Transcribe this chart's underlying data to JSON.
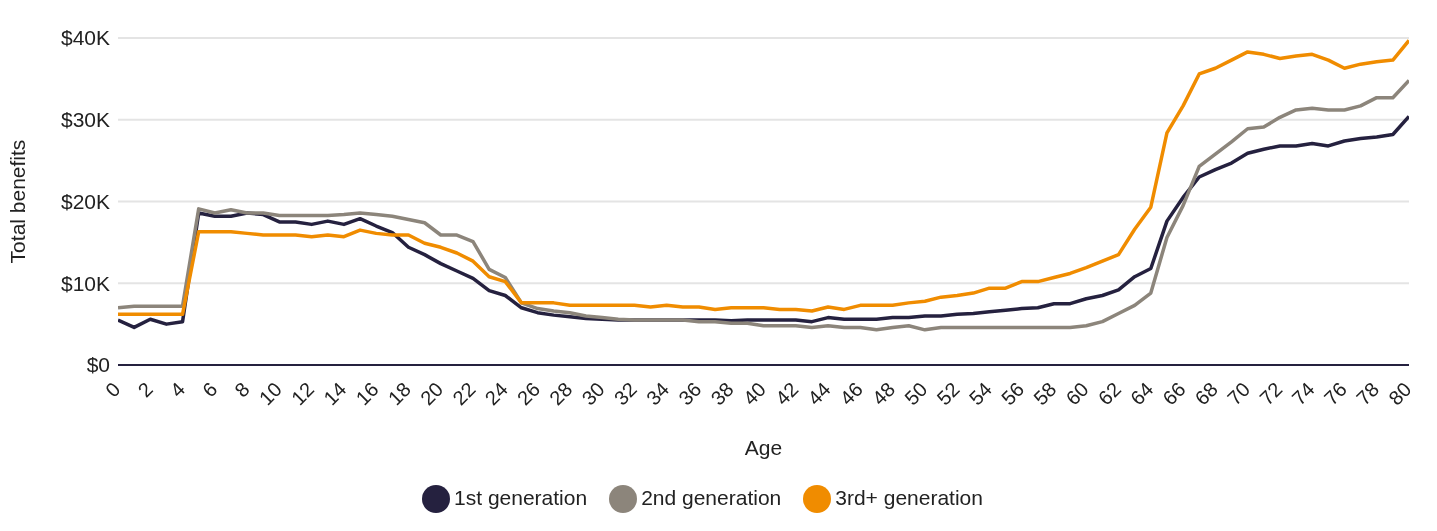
{
  "chart_data": {
    "type": "line",
    "xlabel": "Age",
    "ylabel": "Total benefits",
    "x": [
      0,
      1,
      2,
      3,
      4,
      5,
      6,
      7,
      8,
      9,
      10,
      11,
      12,
      13,
      14,
      15,
      16,
      17,
      18,
      19,
      20,
      21,
      22,
      23,
      24,
      25,
      26,
      27,
      28,
      29,
      30,
      31,
      32,
      33,
      34,
      35,
      36,
      37,
      38,
      39,
      40,
      41,
      42,
      43,
      44,
      45,
      46,
      47,
      48,
      49,
      50,
      51,
      52,
      53,
      54,
      55,
      56,
      57,
      58,
      59,
      60,
      61,
      62,
      63,
      64,
      65,
      66,
      67,
      68,
      69,
      70,
      71,
      72,
      73,
      74,
      75,
      76,
      77,
      78,
      79,
      80
    ],
    "xlim": [
      0,
      80
    ],
    "xticks": [
      0,
      2,
      4,
      6,
      8,
      10,
      12,
      14,
      16,
      18,
      20,
      22,
      24,
      26,
      28,
      30,
      32,
      34,
      36,
      38,
      40,
      42,
      44,
      46,
      48,
      50,
      52,
      54,
      56,
      58,
      60,
      62,
      64,
      66,
      68,
      70,
      72,
      74,
      76,
      78,
      80
    ],
    "ylim": [
      0,
      40000
    ],
    "yticks": [
      {
        "value": 0,
        "label": "$0"
      },
      {
        "value": 10000,
        "label": "$10K"
      },
      {
        "value": 20000,
        "label": "$20K"
      },
      {
        "value": 30000,
        "label": "$30K"
      },
      {
        "value": 40000,
        "label": "$40K"
      }
    ],
    "grid": "y",
    "legend": "bottom",
    "marker": "none",
    "line_style": "solid",
    "series": [
      {
        "name": "1st generation",
        "color": "#25213f",
        "values": [
          5500,
          4600,
          5600,
          5000,
          5300,
          18600,
          18200,
          18200,
          18600,
          18400,
          17500,
          17500,
          17200,
          17600,
          17200,
          17900,
          17000,
          16200,
          14400,
          13500,
          12400,
          11500,
          10600,
          9100,
          8500,
          7000,
          6400,
          6100,
          5900,
          5700,
          5600,
          5500,
          5500,
          5500,
          5500,
          5500,
          5500,
          5500,
          5400,
          5500,
          5500,
          5500,
          5500,
          5300,
          5800,
          5600,
          5600,
          5600,
          5800,
          5800,
          6000,
          6000,
          6200,
          6300,
          6500,
          6700,
          6900,
          7000,
          7500,
          7500,
          8100,
          8500,
          9200,
          10800,
          11800,
          17600,
          20500,
          23000,
          23900,
          24700,
          25900,
          26400,
          26800,
          26800,
          27100,
          26800,
          27400,
          27700,
          27900,
          28200,
          30400
        ]
      },
      {
        "name": "2nd generation",
        "color": "#8c857b",
        "values": [
          7000,
          7200,
          7200,
          7200,
          7200,
          19100,
          18600,
          19000,
          18600,
          18600,
          18300,
          18300,
          18300,
          18300,
          18400,
          18600,
          18400,
          18200,
          17800,
          17400,
          15900,
          15900,
          15100,
          11700,
          10700,
          7600,
          6900,
          6600,
          6400,
          6000,
          5800,
          5600,
          5500,
          5500,
          5500,
          5500,
          5300,
          5300,
          5100,
          5100,
          4800,
          4800,
          4800,
          4600,
          4800,
          4600,
          4600,
          4300,
          4600,
          4800,
          4300,
          4600,
          4600,
          4600,
          4600,
          4600,
          4600,
          4600,
          4600,
          4600,
          4800,
          5300,
          6300,
          7300,
          8800,
          15600,
          19500,
          24300,
          25800,
          27300,
          28900,
          29100,
          30300,
          31200,
          31400,
          31200,
          31200,
          31700,
          32700,
          32700,
          34800
        ]
      },
      {
        "name": "3rd+ generation",
        "color": "#f08c00",
        "values": [
          6200,
          6200,
          6200,
          6200,
          6200,
          16300,
          16300,
          16300,
          16100,
          15900,
          15900,
          15900,
          15700,
          15900,
          15700,
          16500,
          16100,
          15900,
          15900,
          14900,
          14400,
          13700,
          12700,
          10800,
          10200,
          7600,
          7600,
          7600,
          7300,
          7300,
          7300,
          7300,
          7300,
          7100,
          7300,
          7100,
          7100,
          6800,
          7000,
          7000,
          7000,
          6800,
          6800,
          6600,
          7100,
          6800,
          7300,
          7300,
          7300,
          7600,
          7800,
          8300,
          8500,
          8800,
          9400,
          9400,
          10200,
          10200,
          10700,
          11200,
          11900,
          12700,
          13500,
          16600,
          19300,
          28400,
          31700,
          35600,
          36300,
          37300,
          38300,
          38000,
          37500,
          37800,
          38000,
          37300,
          36300,
          36800,
          37100,
          37300,
          39700
        ]
      }
    ]
  }
}
